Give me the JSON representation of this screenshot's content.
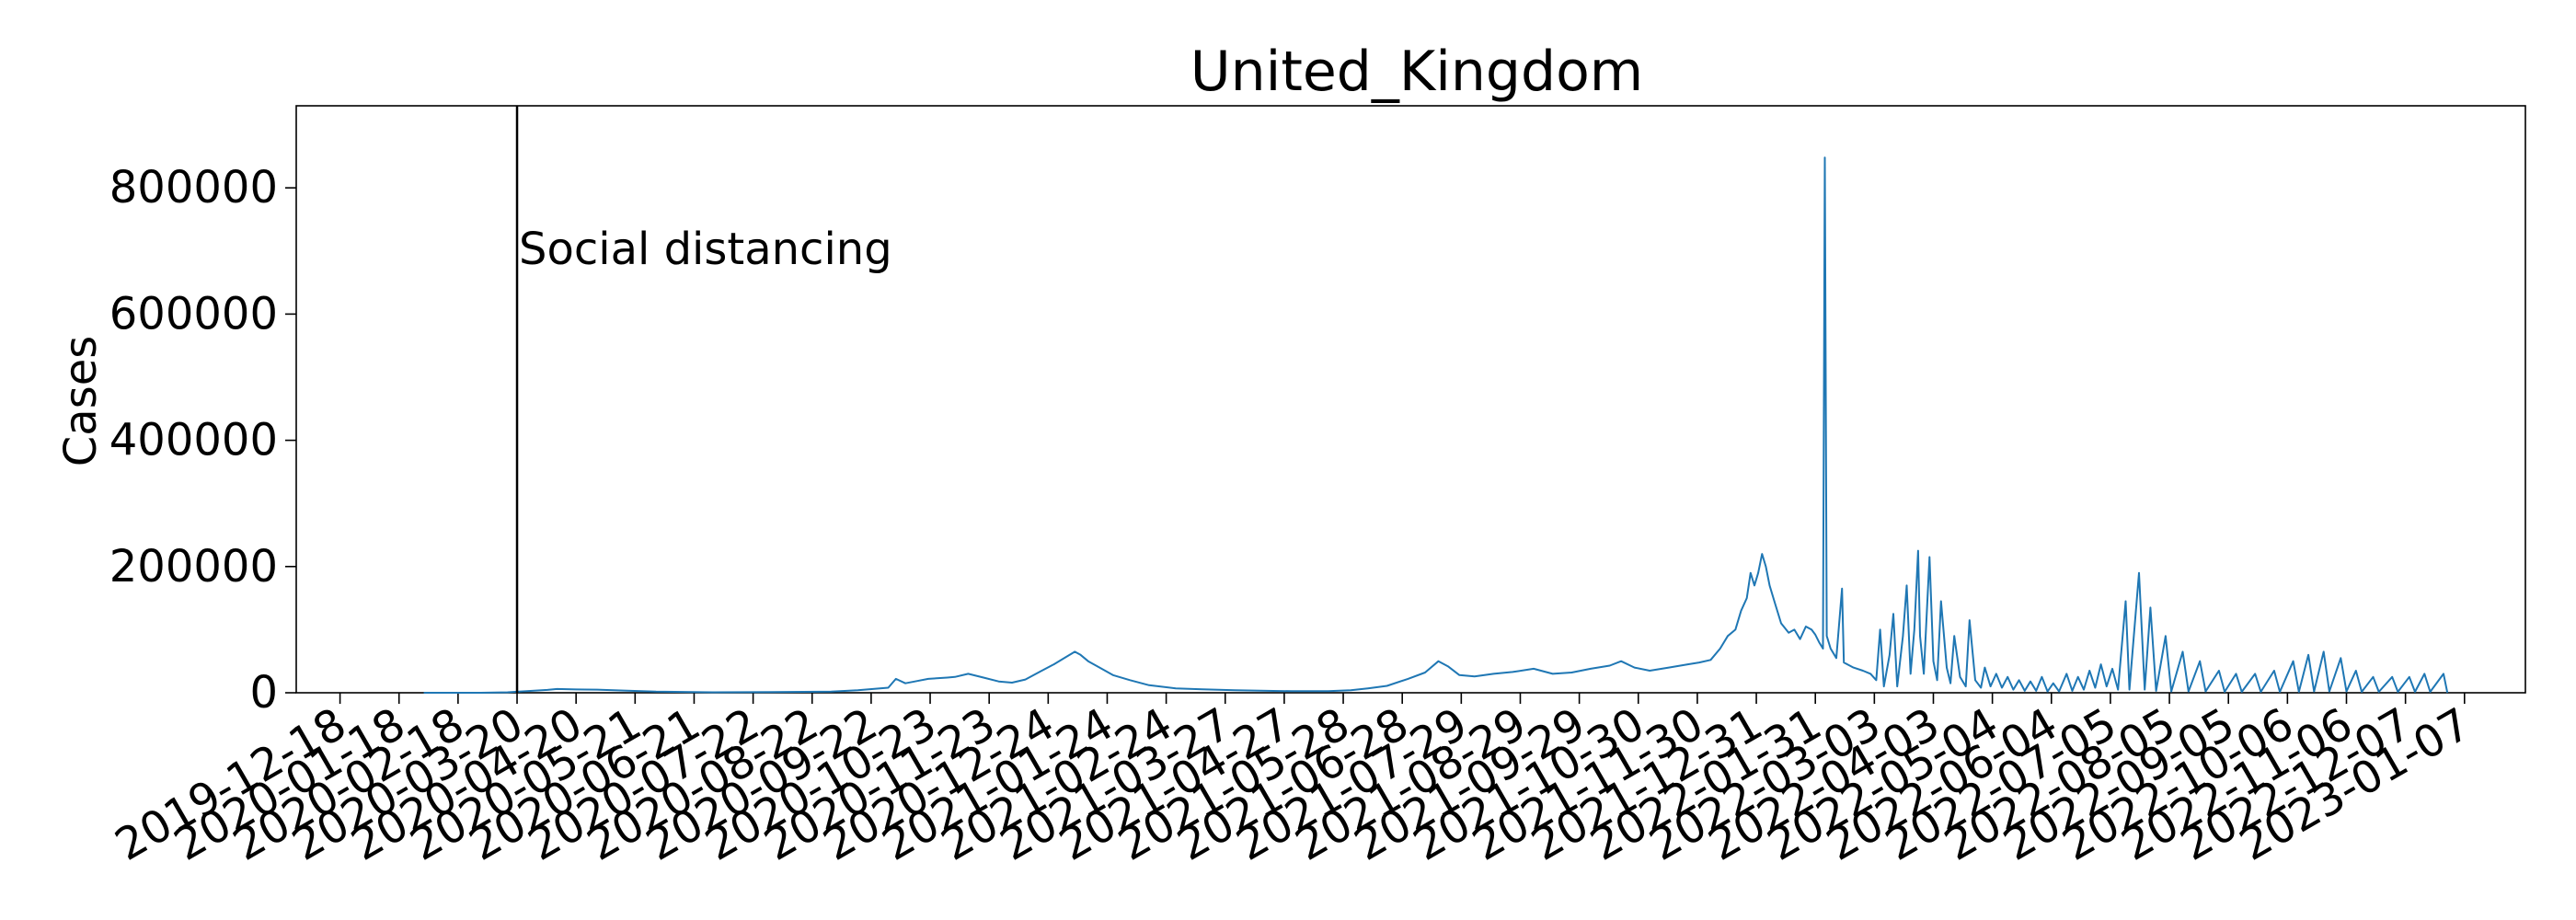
{
  "chart_data": {
    "type": "line",
    "title": "United_Kingdom",
    "xlabel": "",
    "ylabel": "Cases",
    "ylim": [
      0,
      930000
    ],
    "xlim": [
      "2019-11-25",
      "2023-02-08"
    ],
    "grid": false,
    "line_color": "#1f77b4",
    "y_ticks": [
      0,
      200000,
      400000,
      600000,
      800000
    ],
    "x_ticks": [
      "2019-12-18",
      "2020-01-18",
      "2020-02-18",
      "2020-03-20",
      "2020-04-20",
      "2020-05-21",
      "2020-06-21",
      "2020-07-22",
      "2020-08-22",
      "2020-09-22",
      "2020-10-23",
      "2020-11-23",
      "2020-12-24",
      "2021-01-24",
      "2021-02-24",
      "2021-03-27",
      "2021-04-27",
      "2021-05-28",
      "2021-06-28",
      "2021-07-29",
      "2021-08-29",
      "2021-09-29",
      "2021-10-30",
      "2021-11-30",
      "2021-12-31",
      "2022-01-31",
      "2022-03-03",
      "2022-04-03",
      "2022-05-04",
      "2022-06-04",
      "2022-07-05",
      "2022-08-05",
      "2022-09-05",
      "2022-10-06",
      "2022-11-06",
      "2022-12-07",
      "2023-01-07"
    ],
    "annotations": [
      {
        "date": "2020-03-20",
        "label": "Social distancing"
      }
    ],
    "series": [
      {
        "points": [
          [
            "2020-01-31",
            0
          ],
          [
            "2020-03-01",
            30
          ],
          [
            "2020-03-15",
            800
          ],
          [
            "2020-03-25",
            2500
          ],
          [
            "2020-04-05",
            4500
          ],
          [
            "2020-04-10",
            6000
          ],
          [
            "2020-04-20",
            5200
          ],
          [
            "2020-05-01",
            5000
          ],
          [
            "2020-05-15",
            3500
          ],
          [
            "2020-06-01",
            1800
          ],
          [
            "2020-07-01",
            800
          ],
          [
            "2020-08-01",
            1000
          ],
          [
            "2020-09-01",
            1800
          ],
          [
            "2020-09-15",
            4000
          ],
          [
            "2020-10-01",
            8000
          ],
          [
            "2020-10-05",
            22000
          ],
          [
            "2020-10-10",
            15000
          ],
          [
            "2020-10-15",
            18000
          ],
          [
            "2020-10-22",
            22000
          ],
          [
            "2020-11-01",
            24000
          ],
          [
            "2020-11-05",
            25000
          ],
          [
            "2020-11-12",
            30000
          ],
          [
            "2020-11-20",
            24000
          ],
          [
            "2020-11-28",
            18000
          ],
          [
            "2020-12-05",
            16000
          ],
          [
            "2020-12-12",
            21000
          ],
          [
            "2020-12-20",
            34000
          ],
          [
            "2020-12-27",
            45000
          ],
          [
            "2021-01-02",
            56000
          ],
          [
            "2021-01-07",
            65000
          ],
          [
            "2021-01-10",
            60000
          ],
          [
            "2021-01-14",
            50000
          ],
          [
            "2021-01-20",
            40000
          ],
          [
            "2021-01-27",
            28000
          ],
          [
            "2021-02-05",
            20000
          ],
          [
            "2021-02-15",
            12000
          ],
          [
            "2021-03-01",
            7000
          ],
          [
            "2021-03-15",
            5500
          ],
          [
            "2021-04-01",
            4000
          ],
          [
            "2021-05-01",
            2500
          ],
          [
            "2021-05-20",
            2500
          ],
          [
            "2021-06-01",
            4000
          ],
          [
            "2021-06-10",
            7000
          ],
          [
            "2021-06-20",
            11000
          ],
          [
            "2021-07-01",
            22000
          ],
          [
            "2021-07-10",
            32000
          ],
          [
            "2021-07-17",
            50000
          ],
          [
            "2021-07-22",
            42000
          ],
          [
            "2021-07-28",
            28000
          ],
          [
            "2021-08-05",
            26000
          ],
          [
            "2021-08-15",
            30000
          ],
          [
            "2021-08-25",
            33000
          ],
          [
            "2021-09-05",
            38000
          ],
          [
            "2021-09-15",
            30000
          ],
          [
            "2021-09-25",
            32000
          ],
          [
            "2021-10-05",
            38000
          ],
          [
            "2021-10-15",
            43000
          ],
          [
            "2021-10-21",
            50000
          ],
          [
            "2021-10-28",
            40000
          ],
          [
            "2021-11-05",
            35000
          ],
          [
            "2021-11-15",
            40000
          ],
          [
            "2021-11-25",
            45000
          ],
          [
            "2021-12-01",
            48000
          ],
          [
            "2021-12-07",
            52000
          ],
          [
            "2021-12-12",
            70000
          ],
          [
            "2021-12-16",
            90000
          ],
          [
            "2021-12-20",
            100000
          ],
          [
            "2021-12-23",
            130000
          ],
          [
            "2021-12-26",
            150000
          ],
          [
            "2021-12-28",
            190000
          ],
          [
            "2021-12-30",
            170000
          ],
          [
            "2022-01-01",
            190000
          ],
          [
            "2022-01-03",
            220000
          ],
          [
            "2022-01-05",
            200000
          ],
          [
            "2022-01-07",
            170000
          ],
          [
            "2022-01-10",
            140000
          ],
          [
            "2022-01-13",
            110000
          ],
          [
            "2022-01-17",
            95000
          ],
          [
            "2022-01-20",
            100000
          ],
          [
            "2022-01-23",
            85000
          ],
          [
            "2022-01-26",
            105000
          ],
          [
            "2022-01-29",
            100000
          ],
          [
            "2022-01-31",
            92000
          ],
          [
            "2022-02-02",
            80000
          ],
          [
            "2022-02-04",
            70000
          ],
          [
            "2022-02-05",
            848000
          ],
          [
            "2022-02-06",
            90000
          ],
          [
            "2022-02-08",
            70000
          ],
          [
            "2022-02-11",
            55000
          ],
          [
            "2022-02-14",
            165000
          ],
          [
            "2022-02-15",
            48000
          ],
          [
            "2022-02-20",
            40000
          ],
          [
            "2022-02-25",
            35000
          ],
          [
            "2022-03-01",
            30000
          ],
          [
            "2022-03-04",
            20000
          ],
          [
            "2022-03-06",
            100000
          ],
          [
            "2022-03-08",
            10000
          ],
          [
            "2022-03-11",
            60000
          ],
          [
            "2022-03-13",
            125000
          ],
          [
            "2022-03-15",
            10000
          ],
          [
            "2022-03-18",
            90000
          ],
          [
            "2022-03-20",
            170000
          ],
          [
            "2022-03-22",
            30000
          ],
          [
            "2022-03-24",
            100000
          ],
          [
            "2022-03-26",
            225000
          ],
          [
            "2022-03-27",
            90000
          ],
          [
            "2022-03-29",
            30000
          ],
          [
            "2022-04-01",
            215000
          ],
          [
            "2022-04-03",
            50000
          ],
          [
            "2022-04-05",
            20000
          ],
          [
            "2022-04-07",
            145000
          ],
          [
            "2022-04-10",
            40000
          ],
          [
            "2022-04-12",
            15000
          ],
          [
            "2022-04-14",
            90000
          ],
          [
            "2022-04-17",
            25000
          ],
          [
            "2022-04-20",
            10000
          ],
          [
            "2022-04-22",
            115000
          ],
          [
            "2022-04-25",
            20000
          ],
          [
            "2022-04-28",
            8000
          ],
          [
            "2022-04-30",
            40000
          ],
          [
            "2022-05-03",
            10000
          ],
          [
            "2022-05-06",
            30000
          ],
          [
            "2022-05-09",
            8000
          ],
          [
            "2022-05-12",
            25000
          ],
          [
            "2022-05-15",
            5000
          ],
          [
            "2022-05-18",
            20000
          ],
          [
            "2022-05-21",
            3000
          ],
          [
            "2022-05-24",
            18000
          ],
          [
            "2022-05-27",
            3000
          ],
          [
            "2022-05-30",
            25000
          ],
          [
            "2022-06-02",
            2000
          ],
          [
            "2022-06-05",
            15000
          ],
          [
            "2022-06-08",
            2000
          ],
          [
            "2022-06-12",
            30000
          ],
          [
            "2022-06-15",
            3000
          ],
          [
            "2022-06-18",
            25000
          ],
          [
            "2022-06-21",
            5000
          ],
          [
            "2022-06-24",
            35000
          ],
          [
            "2022-06-27",
            8000
          ],
          [
            "2022-06-30",
            45000
          ],
          [
            "2022-07-03",
            10000
          ],
          [
            "2022-07-06",
            38000
          ],
          [
            "2022-07-09",
            5000
          ],
          [
            "2022-07-13",
            145000
          ],
          [
            "2022-07-15",
            5000
          ],
          [
            "2022-07-20",
            190000
          ],
          [
            "2022-07-23",
            5000
          ],
          [
            "2022-07-26",
            135000
          ],
          [
            "2022-07-29",
            3000
          ],
          [
            "2022-08-03",
            90000
          ],
          [
            "2022-08-06",
            2000
          ],
          [
            "2022-08-12",
            65000
          ],
          [
            "2022-08-15",
            2000
          ],
          [
            "2022-08-21",
            50000
          ],
          [
            "2022-08-24",
            2000
          ],
          [
            "2022-08-31",
            35000
          ],
          [
            "2022-09-03",
            1500
          ],
          [
            "2022-09-09",
            30000
          ],
          [
            "2022-09-12",
            1500
          ],
          [
            "2022-09-19",
            30000
          ],
          [
            "2022-09-22",
            1500
          ],
          [
            "2022-09-29",
            35000
          ],
          [
            "2022-10-02",
            1500
          ],
          [
            "2022-10-09",
            50000
          ],
          [
            "2022-10-12",
            1500
          ],
          [
            "2022-10-17",
            60000
          ],
          [
            "2022-10-20",
            2000
          ],
          [
            "2022-10-25",
            65000
          ],
          [
            "2022-10-28",
            2000
          ],
          [
            "2022-11-03",
            55000
          ],
          [
            "2022-11-06",
            2000
          ],
          [
            "2022-11-11",
            35000
          ],
          [
            "2022-11-14",
            1500
          ],
          [
            "2022-11-20",
            25000
          ],
          [
            "2022-11-23",
            1500
          ],
          [
            "2022-11-30",
            25000
          ],
          [
            "2022-12-03",
            1500
          ],
          [
            "2022-12-09",
            25000
          ],
          [
            "2022-12-12",
            1500
          ],
          [
            "2022-12-17",
            30000
          ],
          [
            "2022-12-20",
            1500
          ],
          [
            "2022-12-27",
            30000
          ],
          [
            "2022-12-29",
            0
          ]
        ]
      }
    ]
  }
}
